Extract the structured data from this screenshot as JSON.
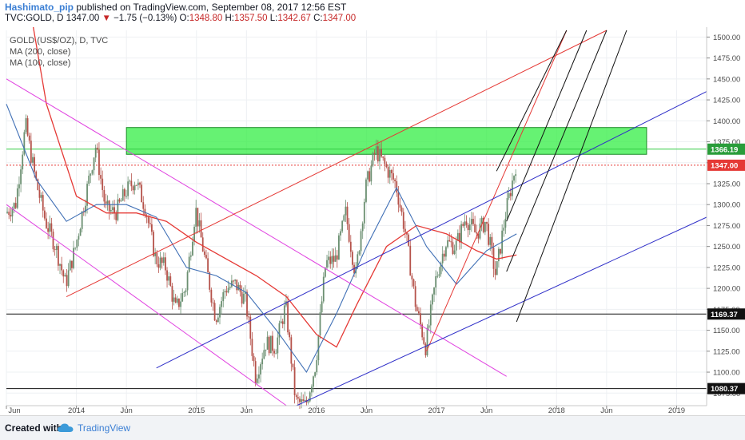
{
  "header": {
    "author": "Hashimato_pip",
    "published_text": "published on TradingView.com, September 08, 2017 12:56 EST",
    "symbol": "TVC:GOLD, D",
    "last": "1347.00",
    "change_arrow": "▼",
    "change": "−1.75 (−0.13%)",
    "o_label": "O:",
    "o_value": "1348.80",
    "h_label": "H:",
    "h_value": "1357.50",
    "l_label": "L:",
    "l_value": "1342.67",
    "c_label": "C:",
    "c_value": "1347.00"
  },
  "legend": {
    "line1": "GOLD (US$/OZ), D, TVC",
    "line2": "MA (200, close)",
    "line3": "MA (100, close)"
  },
  "footer": {
    "created_with": "Created with",
    "brand": "TradingView"
  },
  "colors": {
    "up_candle": "#6b8f71",
    "down_candle": "#b5524a",
    "ma200": "#e53935",
    "ma100": "#3f6fb5",
    "zone_fill": "#33ee44",
    "zone_border": "#1e8c2a",
    "channel_magenta": "#e040e0",
    "channel_blue": "#2f2fc8",
    "trend_red": "#e53935",
    "fork_black": "#111111",
    "axis_text": "#4a4a4a",
    "grid": "#eef0f3"
  },
  "chart_data": {
    "type": "candlestick",
    "title": "GOLD (US$/OZ), D, TVC",
    "xlabel": "",
    "ylabel": "",
    "x_ticks": [
      "Jun",
      "2014",
      "Jun",
      "2015",
      "Jun",
      "2016",
      "Jun",
      "2017",
      "Jun",
      "2018",
      "Jun",
      "2019"
    ],
    "y_ticks": [
      1075,
      1100,
      1125,
      1150,
      1175,
      1200,
      1225,
      1250,
      1275,
      1300,
      1325,
      1350,
      1375,
      1400,
      1425,
      1450,
      1475,
      1500
    ],
    "ylim": [
      1060,
      1508
    ],
    "xlim": [
      "2013-06",
      "2019-04"
    ],
    "grid": true,
    "price_labels": [
      {
        "value": 1366.19,
        "text": "1366.19",
        "color": "#2a9d3a"
      },
      {
        "value": 1347.0,
        "text": "1347.00",
        "color": "#e53935"
      },
      {
        "value": 1169.37,
        "text": "1169.37",
        "color": "#111111"
      },
      {
        "value": 1080.37,
        "text": "1080.37",
        "color": "#111111"
      }
    ],
    "horizontal_lines": [
      {
        "value": 1366.19,
        "style": "solid",
        "color": "#33cc44"
      },
      {
        "value": 1347.0,
        "style": "dotted",
        "color": "#e53935"
      },
      {
        "value": 1169.37,
        "style": "solid",
        "color": "#111111"
      },
      {
        "value": 1080.37,
        "style": "solid",
        "color": "#111111"
      }
    ],
    "zone": {
      "x0": "2014-06",
      "x1": "2018-10",
      "y0": 1360,
      "y1": 1392
    },
    "price_path": [
      [
        "2013-06",
        1290
      ],
      [
        "2013-07",
        1300
      ],
      [
        "2013-08",
        1395
      ],
      [
        "2013-09",
        1330
      ],
      [
        "2013-10",
        1280
      ],
      [
        "2013-11",
        1250
      ],
      [
        "2013-12",
        1205
      ],
      [
        "2014-01",
        1250
      ],
      [
        "2014-02",
        1310
      ],
      [
        "2014-03",
        1370
      ],
      [
        "2014-04",
        1295
      ],
      [
        "2014-05",
        1290
      ],
      [
        "2014-06",
        1315
      ],
      [
        "2014-07",
        1330
      ],
      [
        "2014-08",
        1295
      ],
      [
        "2014-09",
        1235
      ],
      [
        "2014-10",
        1225
      ],
      [
        "2014-11",
        1175
      ],
      [
        "2014-12",
        1200
      ],
      [
        "2015-01",
        1295
      ],
      [
        "2015-02",
        1230
      ],
      [
        "2015-03",
        1165
      ],
      [
        "2015-04",
        1200
      ],
      [
        "2015-05",
        1205
      ],
      [
        "2015-06",
        1185
      ],
      [
        "2015-07",
        1095
      ],
      [
        "2015-08",
        1135
      ],
      [
        "2015-09",
        1130
      ],
      [
        "2015-10",
        1180
      ],
      [
        "2015-11",
        1065
      ],
      [
        "2015-12",
        1060
      ],
      [
        "2016-01",
        1110
      ],
      [
        "2016-02",
        1230
      ],
      [
        "2016-03",
        1235
      ],
      [
        "2016-04",
        1290
      ],
      [
        "2016-05",
        1215
      ],
      [
        "2016-06",
        1320
      ],
      [
        "2016-07",
        1365
      ],
      [
        "2016-08",
        1345
      ],
      [
        "2016-09",
        1325
      ],
      [
        "2016-10",
        1265
      ],
      [
        "2016-11",
        1180
      ],
      [
        "2016-12",
        1130
      ],
      [
        "2017-01",
        1210
      ],
      [
        "2017-02",
        1255
      ],
      [
        "2017-03",
        1250
      ],
      [
        "2017-04",
        1285
      ],
      [
        "2017-05",
        1265
      ],
      [
        "2017-06",
        1280
      ],
      [
        "2017-07",
        1215
      ],
      [
        "2017-08",
        1290
      ],
      [
        "2017-09",
        1347
      ]
    ],
    "ma200": [
      [
        "2013-08",
        1560
      ],
      [
        "2013-10",
        1420
      ],
      [
        "2014-01",
        1310
      ],
      [
        "2014-04",
        1290
      ],
      [
        "2014-07",
        1290
      ],
      [
        "2014-10",
        1280
      ],
      [
        "2015-01",
        1255
      ],
      [
        "2015-04",
        1235
      ],
      [
        "2015-07",
        1215
      ],
      [
        "2015-10",
        1190
      ],
      [
        "2016-01",
        1145
      ],
      [
        "2016-03",
        1130
      ],
      [
        "2016-05",
        1180
      ],
      [
        "2016-08",
        1250
      ],
      [
        "2016-11",
        1275
      ],
      [
        "2017-02",
        1265
      ],
      [
        "2017-05",
        1245
      ],
      [
        "2017-07",
        1235
      ],
      [
        "2017-09",
        1240
      ]
    ],
    "ma100": [
      [
        "2013-06",
        1420
      ],
      [
        "2013-09",
        1330
      ],
      [
        "2013-12",
        1280
      ],
      [
        "2014-03",
        1300
      ],
      [
        "2014-06",
        1300
      ],
      [
        "2014-09",
        1285
      ],
      [
        "2014-12",
        1225
      ],
      [
        "2015-03",
        1215
      ],
      [
        "2015-06",
        1195
      ],
      [
        "2015-09",
        1150
      ],
      [
        "2015-12",
        1100
      ],
      [
        "2016-03",
        1170
      ],
      [
        "2016-06",
        1250
      ],
      [
        "2016-09",
        1320
      ],
      [
        "2016-12",
        1250
      ],
      [
        "2017-03",
        1205
      ],
      [
        "2017-06",
        1245
      ],
      [
        "2017-09",
        1265
      ]
    ],
    "drawings": [
      {
        "name": "magenta-channel-upper",
        "color": "#e040e0",
        "points": [
          [
            "2013-06",
            1450
          ],
          [
            "2017-08",
            1095
          ]
        ]
      },
      {
        "name": "magenta-channel-lower",
        "color": "#e040e0",
        "points": [
          [
            "2013-06",
            1300
          ],
          [
            "2015-10",
            1060
          ]
        ]
      },
      {
        "name": "red-channel-line",
        "color": "#e53935",
        "points": [
          [
            "2013-12",
            1190
          ],
          [
            "2018-06",
            1508
          ]
        ]
      },
      {
        "name": "red-trend-line",
        "color": "#e53935",
        "points": [
          [
            "2016-12",
            1125
          ],
          [
            "2018-02",
            1508
          ]
        ]
      },
      {
        "name": "blue-channel-upper",
        "color": "#2f2fc8",
        "points": [
          [
            "2014-09",
            1105
          ],
          [
            "2019-04",
            1435
          ]
        ]
      },
      {
        "name": "blue-channel-lower",
        "color": "#2f2fc8",
        "points": [
          [
            "2015-11",
            1060
          ],
          [
            "2019-04",
            1285
          ]
        ]
      },
      {
        "name": "black-fork-1",
        "color": "#111111",
        "points": [
          [
            "2017-07",
            1340
          ],
          [
            "2018-02",
            1508
          ]
        ]
      },
      {
        "name": "black-fork-2",
        "color": "#111111",
        "points": [
          [
            "2017-08",
            1280
          ],
          [
            "2018-04",
            1508
          ]
        ]
      },
      {
        "name": "black-fork-3",
        "color": "#111111",
        "points": [
          [
            "2017-08",
            1220
          ],
          [
            "2018-06",
            1508
          ]
        ]
      },
      {
        "name": "black-fork-4",
        "color": "#111111",
        "points": [
          [
            "2017-09",
            1160
          ],
          [
            "2018-08",
            1508
          ]
        ]
      }
    ]
  }
}
